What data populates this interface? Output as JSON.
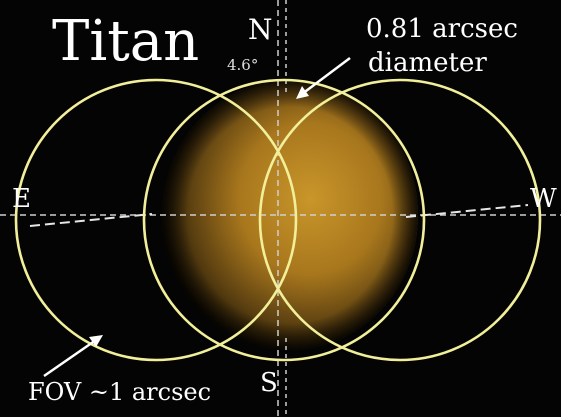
{
  "title": "Titan",
  "north_label": "N",
  "north_tilt": "4.6°",
  "diameter_line1": "0.81 arcsec",
  "diameter_line2": "diameter",
  "east_label": "E",
  "west_label": "W",
  "south_label": "S",
  "fov_label": "FOV ~1 arcsec",
  "colors": {
    "background": "#040404",
    "fov_circle": "#f2ef9a",
    "titan_core": "#c9962a",
    "titan_edge": "#3a2a08",
    "axis_line": "#cfcfcf"
  }
}
